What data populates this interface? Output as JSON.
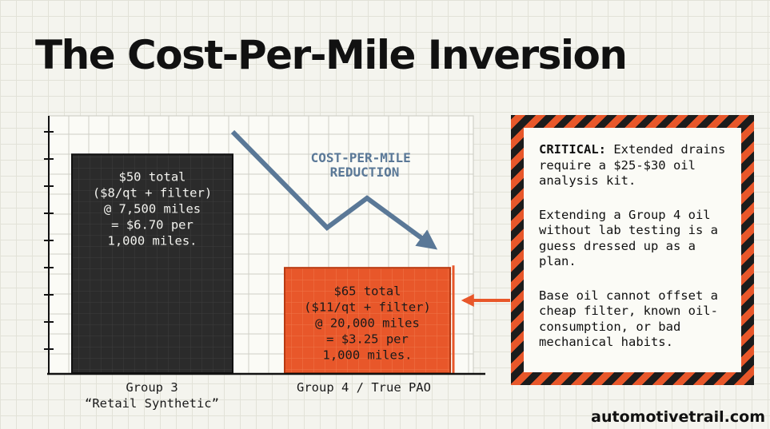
{
  "title": "The Cost-Per-Mile Inversion",
  "chart_data": {
    "type": "bar",
    "categories": [
      "Group 3\n“Retail Synthetic”",
      "Group 4 / True PAO"
    ],
    "values": [
      6.7,
      3.25
    ],
    "bar_labels": [
      [
        "$50 total",
        "($8/qt + filter)",
        "@ 7,500 miles",
        "= $6.70 per",
        "1,000 miles."
      ],
      [
        "$65 total",
        "($11/qt + filter)",
        "@ 20,000 miles",
        "= $3.25 per",
        "1,000 miles."
      ]
    ],
    "bar_colors": [
      "#2b2b2b",
      "#e8572a"
    ],
    "annotation": [
      "COST-PER-MILE",
      "REDUCTION"
    ],
    "annotation_color": "#5a7897",
    "ylim": [
      0,
      7.85
    ],
    "grid": true
  },
  "callout": {
    "critical_label": "CRITICAL:",
    "critical_text": " Extended drains require a $25-$30 oil analysis kit.",
    "paragraph_2": "Extending a Group 4 oil without lab testing is a guess dressed up as a plan.",
    "paragraph_3": "Base oil cannot offset a cheap filter, known oil-consumption, or bad mechanical habits."
  },
  "watermark": "automotivetrail.com"
}
